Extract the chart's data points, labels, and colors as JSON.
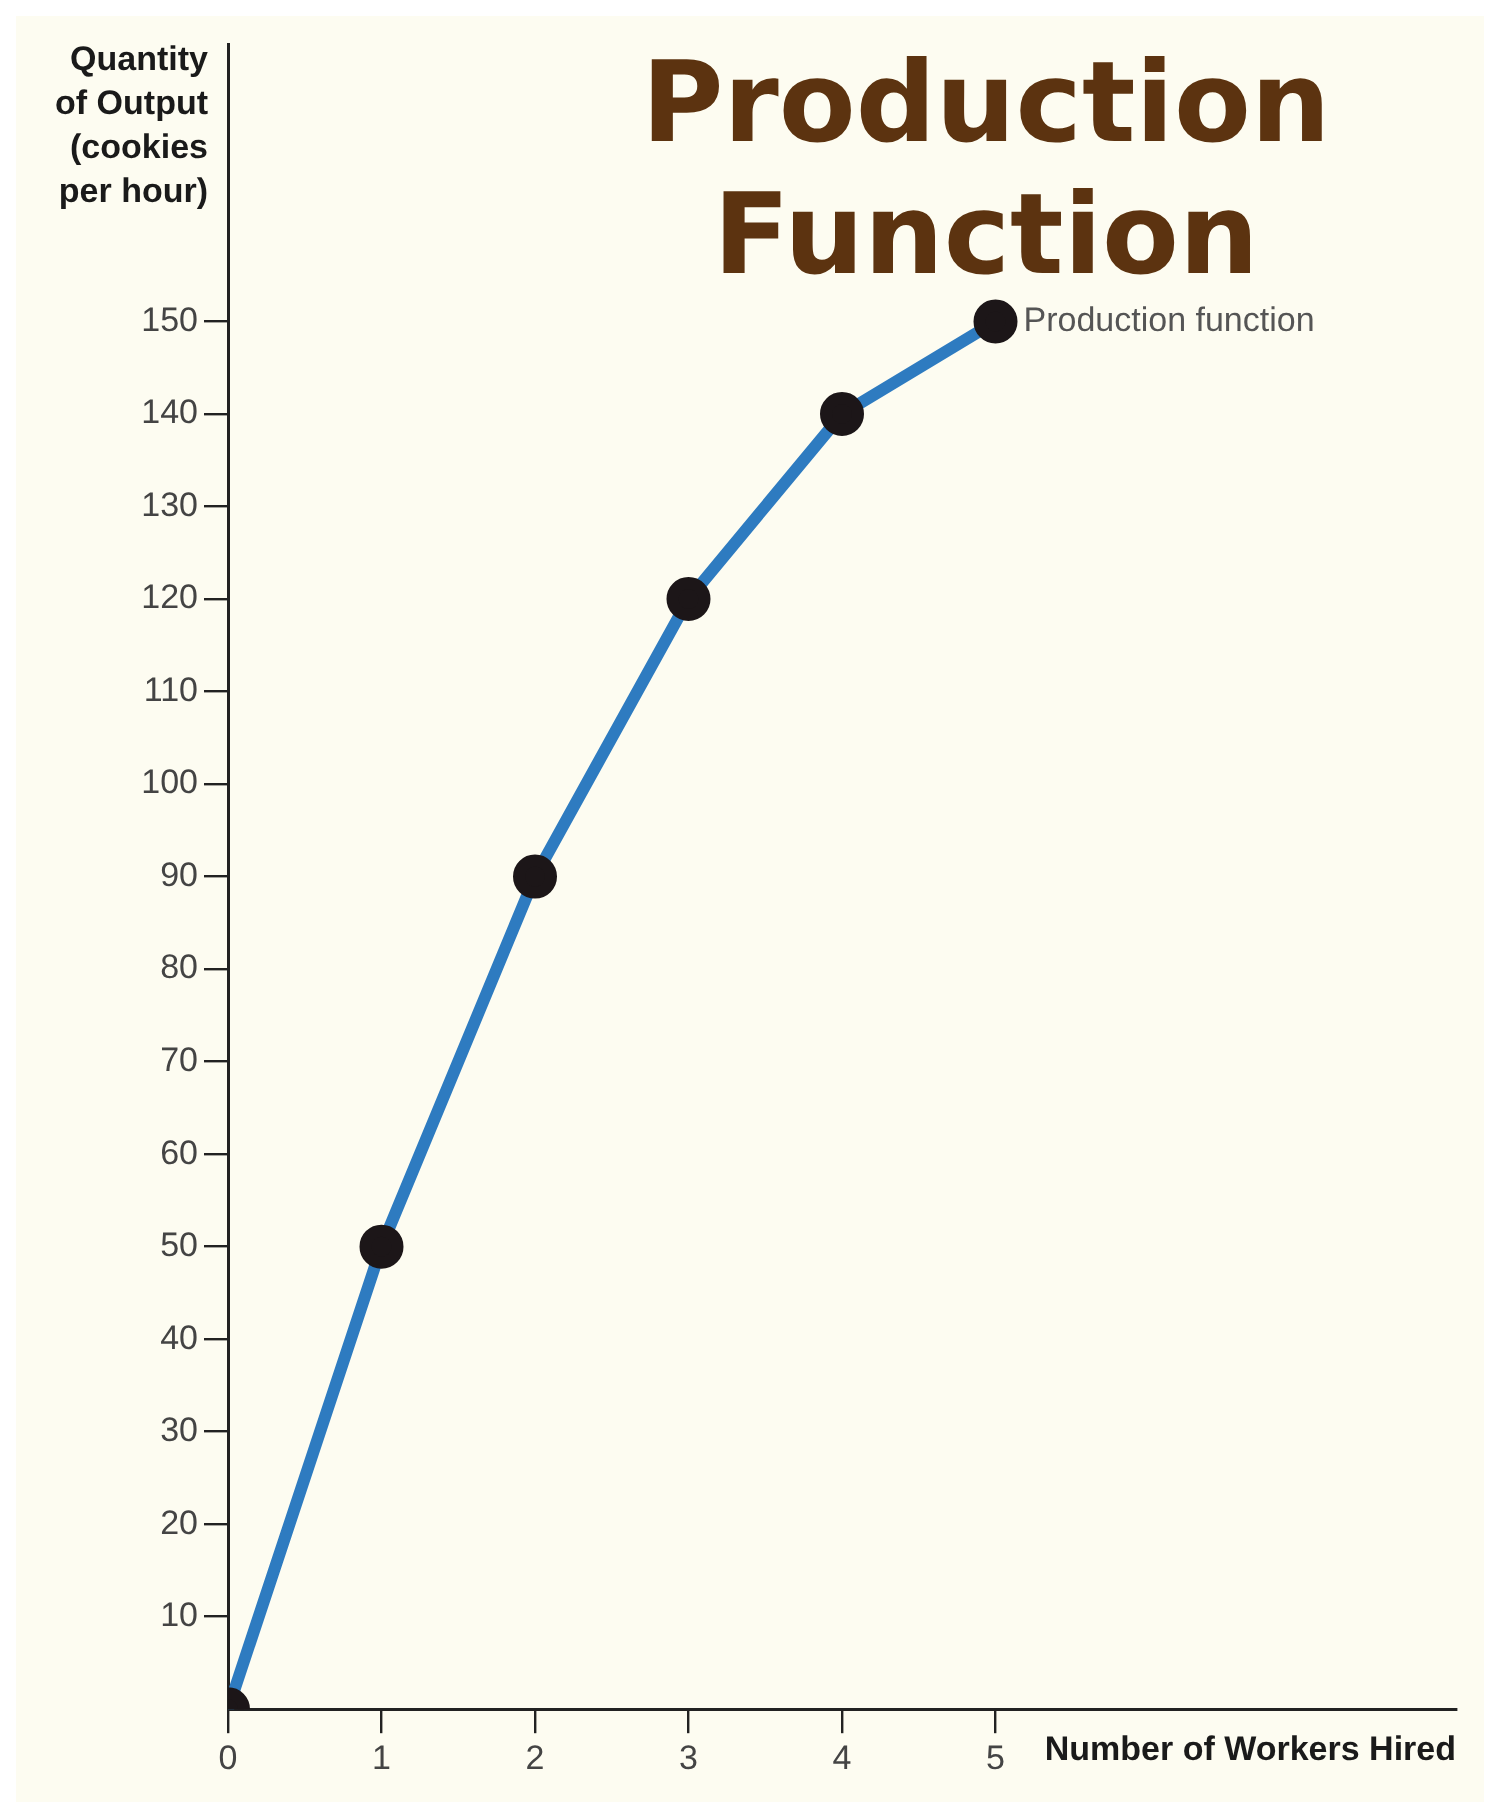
{
  "chart_data": {
    "type": "line",
    "title": "Production Function",
    "xlabel": "Number of Workers Hired",
    "ylabel": "Quantity of Output (cookies per hour)",
    "x": [
      0,
      1,
      2,
      3,
      4,
      5
    ],
    "series": [
      {
        "color": "#2e7bc0",
        "values": [
          0,
          50,
          90,
          120,
          140,
          150
        ]
      }
    ],
    "xlim": [
      0,
      8
    ],
    "xticks": [
      0,
      1,
      2,
      3,
      4,
      5
    ],
    "ylim": [
      0,
      180
    ],
    "yticks": [
      10,
      20,
      30,
      40,
      50,
      60,
      70,
      80,
      90,
      100,
      110,
      120,
      130,
      140,
      150
    ],
    "annotations": [
      {
        "text": "Production function",
        "x": 5,
        "y": 150
      }
    ],
    "grid": false,
    "legend": false,
    "marker": "circle",
    "line_style": "solid"
  }
}
